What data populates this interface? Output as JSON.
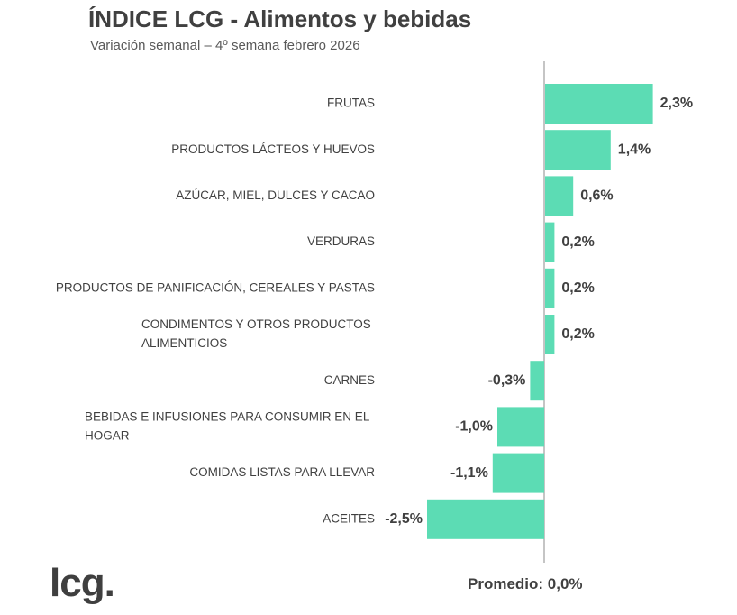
{
  "chart_data": {
    "type": "bar",
    "orientation": "horizontal",
    "title": "ÍNDICE LCG - Alimentos y bebidas",
    "subtitle": "Variación semanal – 4º semana febrero 2026",
    "categories": [
      [
        "FRUTAS"
      ],
      [
        "PRODUCTOS LÁCTEOS Y HUEVOS"
      ],
      [
        "AZÚCAR, MIEL, DULCES Y CACAO"
      ],
      [
        "VERDURAS"
      ],
      [
        "PRODUCTOS DE PANIFICACIÓN, CEREALES Y PASTAS"
      ],
      [
        "CONDIMENTOS Y OTROS PRODUCTOS",
        "ALIMENTICIOS"
      ],
      [
        "CARNES"
      ],
      [
        "BEBIDAS E INFUSIONES PARA CONSUMIR EN EL",
        "HOGAR"
      ],
      [
        "COMIDAS LISTAS PARA LLEVAR"
      ],
      [
        "ACEITES"
      ]
    ],
    "values": [
      2.3,
      1.4,
      0.6,
      0.2,
      0.2,
      0.2,
      -0.3,
      -1.0,
      -1.1,
      -2.5
    ],
    "value_labels": [
      "2,3%",
      "1,4%",
      "0,6%",
      "0,2%",
      "0,2%",
      "0,2%",
      "-0,3%",
      "-1,0%",
      "-1,1%",
      "-2,5%"
    ],
    "bar_color": "#5cdcb4",
    "axis_line_color": "#a6a6a6",
    "grid": false,
    "legend": false
  },
  "footer": {
    "logo_text": "lcg.",
    "average_label": "Promedio: 0,0%"
  }
}
